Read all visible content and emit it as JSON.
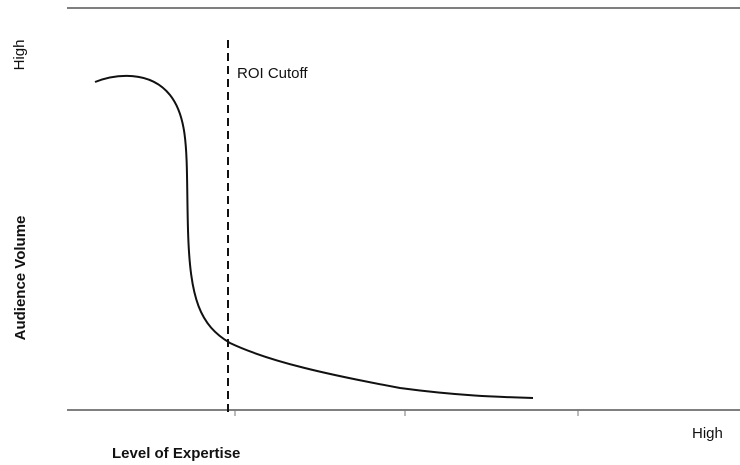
{
  "y_axis": {
    "label": "Audience Volume",
    "high_label": "High"
  },
  "x_axis": {
    "label": "Level of Expertise",
    "high_label": "High"
  },
  "annotation": "ROI Cutoff"
}
